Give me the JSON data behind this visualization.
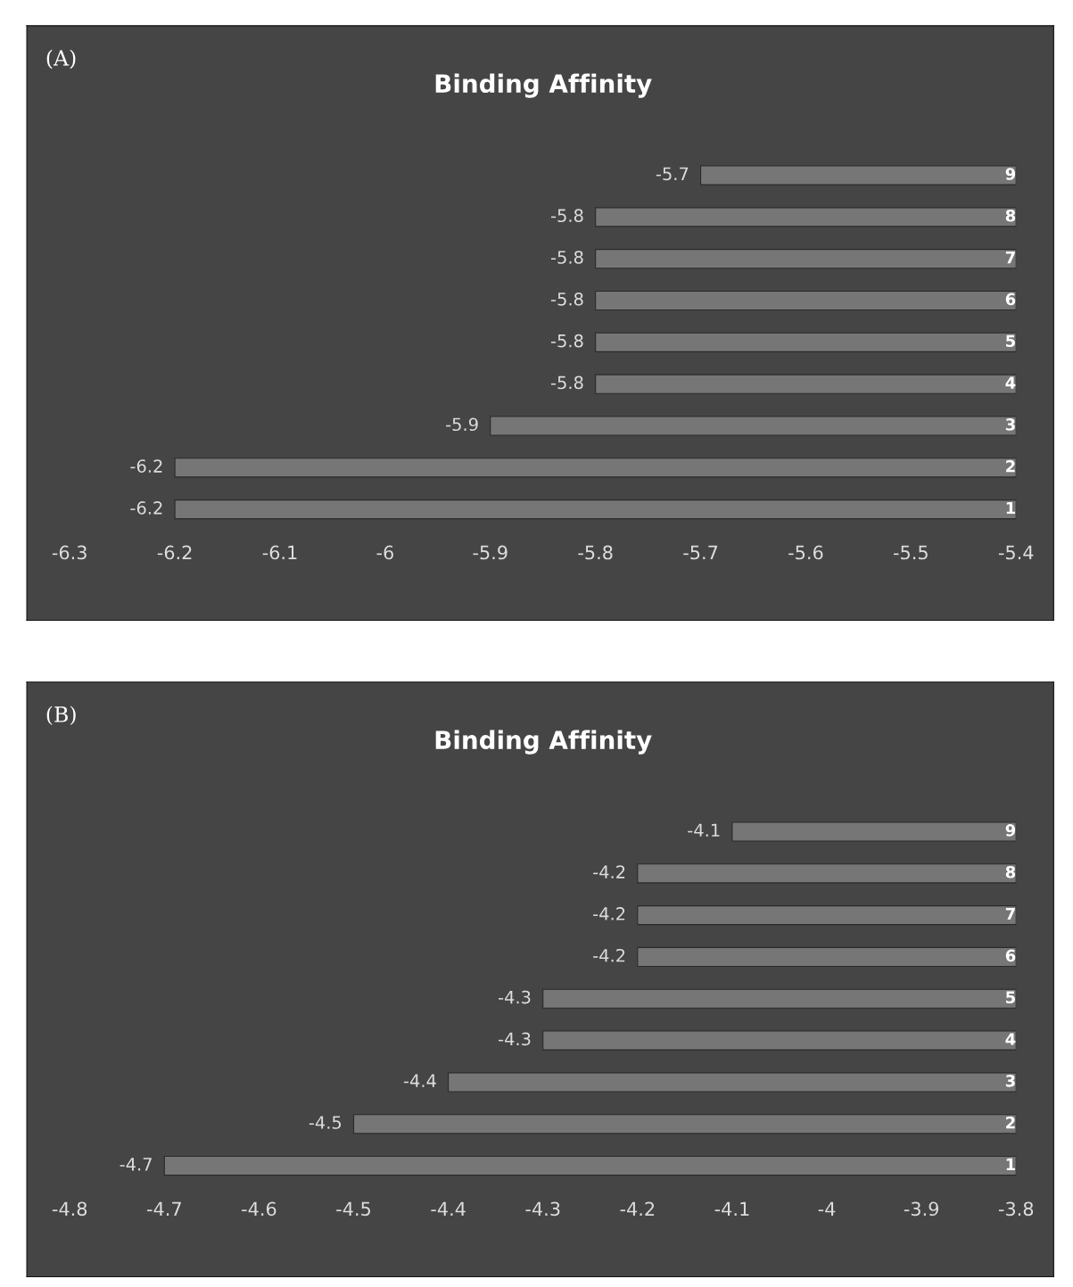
{
  "chart_data": [
    {
      "type": "bar",
      "orientation": "horizontal",
      "title": "Binding Affinity",
      "annotations": [
        "(A)"
      ],
      "categories": [
        "9",
        "8",
        "7",
        "6",
        "5",
        "4",
        "3",
        "2",
        "1"
      ],
      "values": [
        -5.7,
        -5.8,
        -5.8,
        -5.8,
        -5.8,
        -5.8,
        -5.9,
        -6.2,
        -6.2
      ],
      "color": "#767676",
      "xlim": [
        -6.3,
        -5.4
      ],
      "xticks": [
        -6.3,
        -6.2,
        -6.1,
        -6,
        -5.9,
        -5.8,
        -5.7,
        -5.6,
        -5.5,
        -5.4
      ],
      "data_labels": true
    },
    {
      "type": "bar",
      "orientation": "horizontal",
      "title": "Binding Affinity",
      "annotations": [
        "(B)"
      ],
      "categories": [
        "9",
        "8",
        "7",
        "6",
        "5",
        "4",
        "3",
        "2",
        "1"
      ],
      "values": [
        -4.1,
        -4.2,
        -4.2,
        -4.2,
        -4.3,
        -4.3,
        -4.4,
        -4.5,
        -4.7
      ],
      "color": "#767676",
      "xlim": [
        -4.8,
        -3.8
      ],
      "xticks": [
        -4.8,
        -4.7,
        -4.6,
        -4.5,
        -4.4,
        -4.3,
        -4.2,
        -4.1,
        -4,
        -3.9,
        -3.8
      ],
      "data_labels": true
    }
  ]
}
